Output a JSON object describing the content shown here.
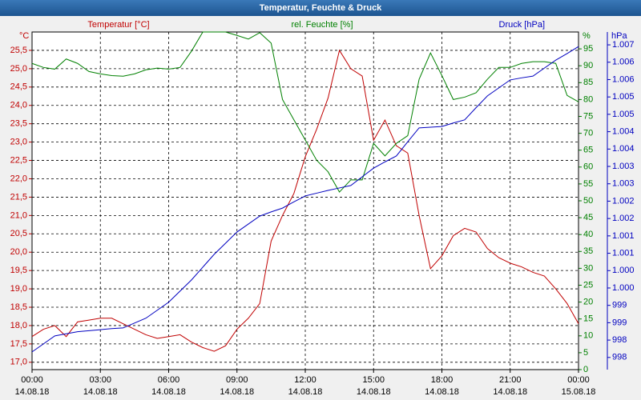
{
  "chart_data": {
    "type": "line",
    "title": "Temperatur, Feuchte & Druck",
    "grid": true,
    "x": [
      0,
      0.5,
      1,
      1.5,
      2,
      2.5,
      3,
      3.5,
      4,
      4.5,
      5,
      5.5,
      6,
      6.5,
      7,
      7.5,
      8,
      8.5,
      9,
      9.5,
      10,
      10.5,
      11,
      11.5,
      12,
      12.5,
      13,
      13.5,
      14,
      14.5,
      15,
      15.5,
      16,
      16.5,
      17,
      17.5,
      18,
      18.5,
      19,
      19.5,
      20,
      20.5,
      21,
      21.5,
      22,
      22.5,
      23,
      23.5,
      24
    ],
    "xlim": [
      0,
      24
    ],
    "xticks": [
      {
        "value": 0,
        "label": "00:00"
      },
      {
        "value": 3,
        "label": "03:00"
      },
      {
        "value": 6,
        "label": "06:00"
      },
      {
        "value": 9,
        "label": "09:00"
      },
      {
        "value": 12,
        "label": "12:00"
      },
      {
        "value": 15,
        "label": "15:00"
      },
      {
        "value": 18,
        "label": "18:00"
      },
      {
        "value": 21,
        "label": "21:00"
      },
      {
        "value": 24,
        "label": "00:00"
      }
    ],
    "xtick_dates": [
      "14.08.18",
      "14.08.18",
      "14.08.18",
      "14.08.18",
      "14.08.18",
      "14.08.18",
      "14.08.18",
      "14.08.18",
      "15.08.18"
    ],
    "ylabel": "Temperatur [°C]",
    "yunit": "°C",
    "ylim": [
      16.8,
      26.0
    ],
    "yticks": [
      {
        "value": 17,
        "label": "17,0"
      },
      {
        "value": 17.5,
        "label": "17,5"
      },
      {
        "value": 18,
        "label": "18,0"
      },
      {
        "value": 18.5,
        "label": "18,5"
      },
      {
        "value": 19,
        "label": "19,0"
      },
      {
        "value": 19.5,
        "label": "19,5"
      },
      {
        "value": 20,
        "label": "20,0"
      },
      {
        "value": 20.5,
        "label": "20,5"
      },
      {
        "value": 21,
        "label": "21,0"
      },
      {
        "value": 21.5,
        "label": "21,5"
      },
      {
        "value": 22,
        "label": "22,0"
      },
      {
        "value": 22.5,
        "label": "22,5"
      },
      {
        "value": 23,
        "label": "23,0"
      },
      {
        "value": 23.5,
        "label": "23,5"
      },
      {
        "value": 24,
        "label": "24,0"
      },
      {
        "value": 24.5,
        "label": "24,5"
      },
      {
        "value": 25,
        "label": "25,0"
      },
      {
        "value": 25.5,
        "label": "25,5"
      }
    ],
    "y2label": "rel. Feuchte [%]",
    "y2unit": "%",
    "y2lim": [
      0,
      100
    ],
    "y2ticks": [
      0,
      5,
      10,
      15,
      20,
      25,
      30,
      35,
      40,
      45,
      50,
      55,
      60,
      65,
      70,
      75,
      80,
      85,
      90,
      95
    ],
    "y3label": "Druck [hPa]",
    "y3unit": "hPa",
    "y3lim": [
      997.4,
      1007.12
    ],
    "y3ticks": [
      {
        "value": 997.75,
        "label": "998"
      },
      {
        "value": 998.25,
        "label": "998"
      },
      {
        "value": 998.75,
        "label": "999"
      },
      {
        "value": 999.25,
        "label": "999"
      },
      {
        "value": 999.75,
        "label": "1.000"
      },
      {
        "value": 1000.25,
        "label": "1.000"
      },
      {
        "value": 1000.75,
        "label": "1.001"
      },
      {
        "value": 1001.25,
        "label": "1.001"
      },
      {
        "value": 1001.75,
        "label": "1.002"
      },
      {
        "value": 1002.25,
        "label": "1.002"
      },
      {
        "value": 1002.75,
        "label": "1.003"
      },
      {
        "value": 1003.25,
        "label": "1.003"
      },
      {
        "value": 1003.75,
        "label": "1.004"
      },
      {
        "value": 1004.25,
        "label": "1.004"
      },
      {
        "value": 1004.75,
        "label": "1.005"
      },
      {
        "value": 1005.25,
        "label": "1.005"
      },
      {
        "value": 1005.75,
        "label": "1.006"
      },
      {
        "value": 1006.25,
        "label": "1.006"
      },
      {
        "value": 1006.75,
        "label": "1.007"
      }
    ],
    "series": [
      {
        "name": "Temperatur",
        "color": "#c00000",
        "axis": "y",
        "values": [
          17.7,
          17.9,
          18.0,
          17.7,
          18.1,
          18.15,
          18.2,
          18.2,
          18.05,
          17.9,
          17.75,
          17.65,
          17.7,
          17.75,
          17.55,
          17.4,
          17.3,
          17.45,
          17.9,
          18.2,
          18.6,
          20.3,
          21.0,
          21.6,
          22.6,
          23.35,
          24.2,
          25.5,
          25.0,
          24.8,
          23.05,
          23.6,
          22.9,
          22.7,
          21.0,
          19.55,
          19.9,
          20.45,
          20.65,
          20.55,
          20.1,
          19.85,
          19.7,
          19.6,
          19.45,
          19.35,
          19.0,
          18.6,
          18.05
        ]
      },
      {
        "name": "Feuchte",
        "color": "#008000",
        "axis": "y2",
        "values": [
          90.7,
          89.5,
          89,
          92,
          90.7,
          88.3,
          87.6,
          87.1,
          86.9,
          87.6,
          88.8,
          89.3,
          89,
          89.5,
          94.3,
          100,
          100,
          100,
          99,
          97.9,
          99.8,
          96.7,
          80,
          74,
          68,
          62,
          58.6,
          52.6,
          56.2,
          56.2,
          67,
          63.3,
          67,
          69.3,
          86,
          93.8,
          87.1,
          80,
          80.7,
          82,
          86,
          89.5,
          89.5,
          90.7,
          91.2,
          91.2,
          90.7,
          81.2,
          79.3
        ]
      },
      {
        "name": "Druck",
        "color": "#0000c0",
        "axis": "y3",
        "values": [
          997.91,
          998.14,
          998.37,
          998.43,
          998.49,
          998.52,
          998.55,
          998.58,
          998.6,
          998.74,
          998.88,
          999.11,
          999.34,
          999.66,
          999.98,
          1000.35,
          1000.72,
          1001.04,
          1001.36,
          1001.59,
          1001.82,
          1001.94,
          1002.05,
          1002.23,
          1002.4,
          1002.48,
          1002.56,
          1002.63,
          1002.7,
          1002.95,
          1003.2,
          1003.38,
          1003.55,
          1003.96,
          1004.36,
          1004.38,
          1004.4,
          1004.5,
          1004.59,
          1004.94,
          1005.28,
          1005.51,
          1005.74,
          1005.8,
          1005.85,
          1006.08,
          1006.31,
          1006.5,
          1006.7
        ]
      }
    ]
  }
}
